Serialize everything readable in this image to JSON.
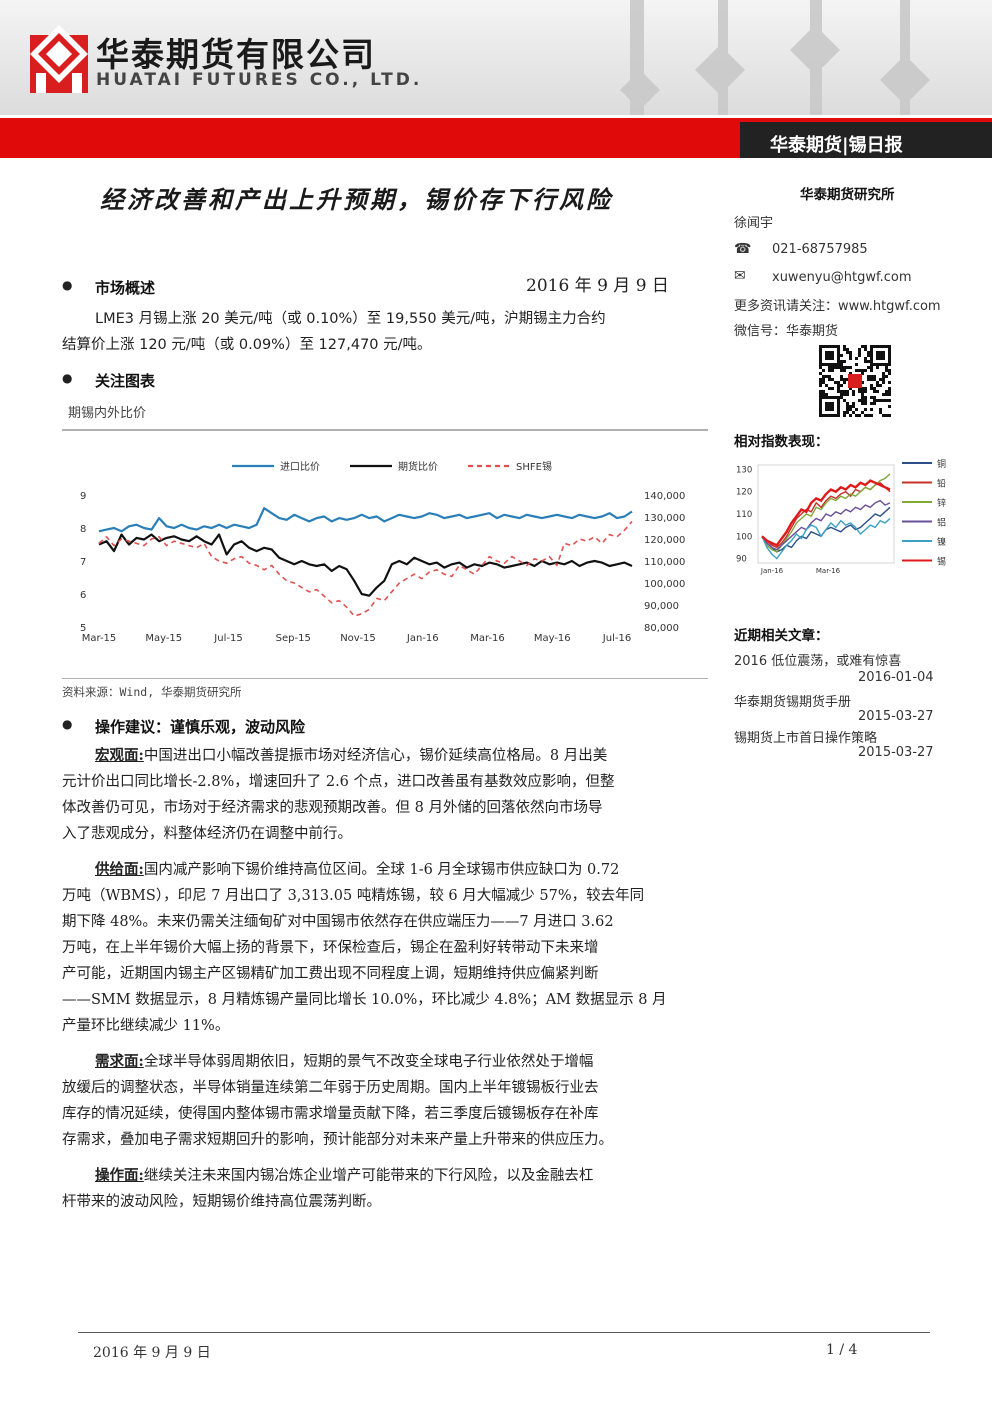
{
  "header": {
    "company_cn": "华泰期货有限公司",
    "company_en": "HUATAI FUTURES CO., LTD.",
    "report_tag": "华泰期货|锡日报"
  },
  "title": "经济改善和产出上升预期，锡价存下行风险",
  "date": "2016 年 9 月 9 日",
  "market_overview": {
    "heading": "市场概述",
    "text_line1": "LME3 月锡上涨 20 美元/吨（或 0.10%）至 19,550 美元/吨，沪期锡主力合约",
    "text_line2": "结算价上涨 120 元/吨（或 0.09%）至 127,470 元/吨。"
  },
  "focus_chart": {
    "heading": "关注图表",
    "caption": "期锡内外比价",
    "source": "资料来源：Wind, 华泰期货研究所"
  },
  "advice": {
    "heading": "操作建议：谨慎乐观，波动风险",
    "paragraphs": [
      {
        "label": "宏观面:",
        "lines": [
          "中国进出口小幅改善提振市场对经济信心，锡价延续高位格局。8 月出美",
          "元计价出口同比增长-2.8%，增速回升了 2.6 个点，进口改善虽有基数效应影响，但整",
          "体改善仍可见，市场对于经济需求的悲观预期改善。但 8 月外储的回落依然向市场导",
          "入了悲观成分，料整体经济仍在调整中前行。"
        ]
      },
      {
        "label": "供给面:",
        "lines": [
          "国内减产影响下锡价维持高位区间。全球 1-6 月全球锡市供应缺口为 0.72",
          "万吨（WBMS），印尼 7 月出口了 3,313.05 吨精炼锡，较 6 月大幅减少 57%，较去年同",
          "期下降 48%。未来仍需关注缅甸矿对中国锡市依然存在供应端压力——7 月进口 3.62",
          "万吨，在上半年锡价大幅上扬的背景下，环保检查后，锡企在盈利好转带动下未来增",
          "产可能，近期国内锡主产区锡精矿加工费出现不同程度上调，短期维持供应偏紧判断",
          "——SMM 数据显示，8 月精炼锡产量同比增长 10.0%，环比减少 4.8%；AM 数据显示 8 月",
          "产量环比继续减少 11%。"
        ]
      },
      {
        "label": "需求面:",
        "lines": [
          "全球半导体弱周期依旧，短期的景气不改变全球电子行业依然处于增幅",
          "放缓后的调整状态，半导体销量连续第二年弱于历史周期。国内上半年镀锡板行业去",
          "库存的情况延续，使得国内整体锡市需求增量贡献下降，若三季度后镀锡板存在补库",
          "存需求，叠加电子需求短期回升的影响，预计能部分对未来产量上升带来的供应压力。"
        ]
      },
      {
        "label": "操作面:",
        "lines": [
          "继续关注未来国内锡冶炼企业增产可能带来的下行风险，以及金融去杠",
          "杆带来的波动风险，短期锡价维持高位震荡判断。"
        ]
      }
    ]
  },
  "sidebar": {
    "institute": "华泰期货研究所",
    "analyst": "徐闻宇",
    "phone": "021-68757985",
    "email": "xuwenyu@htgwf.com",
    "more_info": "更多资讯请关注：www.htgwf.com",
    "wechat": "微信号：华泰期货",
    "relative_index_heading": "相对指数表现：",
    "related_heading": "近期相关文章：",
    "articles": [
      {
        "title": "2016 低位震荡，或难有惊喜",
        "date": "2016-01-04"
      },
      {
        "title": "华泰期货锡期货手册",
        "date": "2015-03-27"
      },
      {
        "title": "锡期货上市首日操作策略",
        "date": "2015-03-27"
      }
    ]
  },
  "footer": {
    "date": "2016 年 9 月 9 日",
    "page": "1 / 4"
  },
  "chart_data": [
    {
      "type": "line",
      "legend_position": "top",
      "x_ticks": [
        "Mar-15",
        "May-15",
        "Jul-15",
        "Sep-15",
        "Nov-15",
        "Jan-16",
        "Mar-16",
        "May-16",
        "Jul-16"
      ],
      "y_left_ticks": [
        "9",
        "8",
        "7",
        "6",
        "5"
      ],
      "y_right_ticks": [
        "140,000",
        "130,000",
        "120,000",
        "110,000",
        "100,000",
        "90,000",
        "80,000"
      ],
      "ylim_left": [
        5,
        9
      ],
      "ylim_right": [
        80000,
        140000
      ],
      "series": [
        {
          "name": "进口比价",
          "color": "#2a7fb8",
          "axis": "left",
          "values": [
            7.9,
            7.95,
            8.0,
            7.9,
            8.05,
            8.1,
            8.0,
            7.95,
            8.3,
            8.05,
            8.0,
            8.1,
            8.0,
            7.95,
            8.05,
            8.0,
            8.1,
            8.0,
            8.1,
            8.05,
            8.0,
            8.1,
            8.6,
            8.45,
            8.3,
            8.25,
            8.4,
            8.3,
            8.2,
            8.3,
            8.35,
            8.2,
            8.3,
            8.25,
            8.3,
            8.4,
            8.3,
            8.35,
            8.2,
            8.3,
            8.4,
            8.35,
            8.3,
            8.35,
            8.45,
            8.4,
            8.3,
            8.35,
            8.4,
            8.3,
            8.35,
            8.4,
            8.45,
            8.3,
            8.4,
            8.35,
            8.3,
            8.4,
            8.35,
            8.3,
            8.35,
            8.4,
            8.35,
            8.3,
            8.4,
            8.35,
            8.3,
            8.35,
            8.45,
            8.3,
            8.35,
            8.5
          ]
        },
        {
          "name": "期货比价",
          "color": "#111111",
          "axis": "left",
          "values": [
            7.5,
            7.6,
            7.3,
            7.8,
            7.5,
            7.7,
            7.65,
            7.8,
            7.6,
            7.7,
            7.75,
            7.65,
            7.6,
            7.75,
            7.6,
            7.5,
            7.8,
            7.2,
            7.5,
            7.6,
            7.4,
            7.3,
            7.4,
            7.35,
            7.1,
            7.0,
            6.9,
            7.0,
            6.9,
            6.85,
            6.9,
            6.7,
            6.85,
            6.75,
            6.4,
            6.0,
            5.95,
            6.2,
            6.4,
            6.9,
            7.0,
            6.9,
            7.1,
            7.0,
            6.9,
            6.95,
            6.8,
            6.9,
            6.95,
            6.8,
            6.9,
            6.85,
            6.95,
            6.9,
            6.8,
            6.85,
            6.9,
            6.95,
            6.85,
            7.0,
            6.9,
            6.95,
            6.9,
            7.0,
            6.85,
            6.95,
            7.0,
            6.95,
            6.85,
            6.9,
            6.95,
            6.85
          ]
        },
        {
          "name": "SHFE锡",
          "color": "#e05050",
          "axis": "right",
          "dashed": true,
          "values": [
            118000,
            121000,
            117000,
            120000,
            119000,
            118000,
            117000,
            120000,
            121000,
            117000,
            119000,
            118000,
            117000,
            116000,
            118000,
            112000,
            110000,
            109000,
            111000,
            112000,
            109000,
            108000,
            106000,
            108000,
            104000,
            101000,
            100000,
            98000,
            96000,
            97000,
            94000,
            91000,
            92000,
            89000,
            85000,
            86000,
            88000,
            93000,
            92000,
            96000,
            100000,
            102000,
            104000,
            102000,
            105000,
            106000,
            104000,
            103000,
            108000,
            106000,
            104000,
            108000,
            112000,
            110000,
            109000,
            112000,
            110000,
            108000,
            111000,
            110000,
            112000,
            108000,
            118000,
            117000,
            120000,
            119000,
            121000,
            118000,
            122000,
            121000,
            124000,
            128000
          ]
        }
      ]
    },
    {
      "type": "line",
      "legend_position": "right",
      "x_ticks": [
        "Jan-16",
        "Mar-16"
      ],
      "y_ticks": [
        "130",
        "120",
        "110",
        "100",
        "90"
      ],
      "ylim": [
        88,
        132
      ],
      "series": [
        {
          "name": "铜",
          "color": "#2b4f8a",
          "values": [
            100,
            97,
            95,
            93,
            94,
            96,
            95,
            98,
            100,
            99,
            102,
            101,
            100,
            103,
            104,
            103,
            102,
            104,
            105,
            103,
            104,
            106,
            108,
            110,
            109,
            111,
            113
          ]
        },
        {
          "name": "铅",
          "color": "#c8302a",
          "values": [
            100,
            98,
            96,
            95,
            97,
            100,
            104,
            108,
            110,
            112,
            111,
            115,
            113,
            116,
            118,
            117,
            119,
            120,
            118,
            121,
            120,
            122,
            121,
            123,
            124,
            122,
            120
          ]
        },
        {
          "name": "锌",
          "color": "#7faa3b",
          "values": [
            100,
            96,
            94,
            93,
            96,
            99,
            102,
            106,
            108,
            110,
            109,
            113,
            112,
            115,
            117,
            116,
            118,
            117,
            119,
            118,
            120,
            122,
            121,
            123,
            125,
            126,
            128
          ]
        },
        {
          "name": "铝",
          "color": "#6a4f9a",
          "values": [
            100,
            97,
            95,
            94,
            96,
            98,
            100,
            102,
            104,
            103,
            106,
            108,
            107,
            110,
            109,
            111,
            110,
            112,
            111,
            113,
            112,
            114,
            113,
            115,
            116,
            114,
            115
          ]
        },
        {
          "name": "镍",
          "color": "#3aa0c4",
          "values": [
            100,
            95,
            92,
            90,
            93,
            96,
            98,
            101,
            99,
            103,
            105,
            104,
            100,
            103,
            106,
            104,
            107,
            105,
            106,
            104,
            101,
            103,
            105,
            104,
            107,
            106,
            108
          ]
        },
        {
          "name": "锡",
          "color": "#e01a1a",
          "values": [
            100,
            98,
            97,
            96,
            99,
            102,
            106,
            109,
            112,
            111,
            115,
            117,
            116,
            119,
            121,
            120,
            122,
            121,
            123,
            122,
            124,
            123,
            125,
            124,
            123,
            122,
            121
          ]
        }
      ]
    }
  ]
}
